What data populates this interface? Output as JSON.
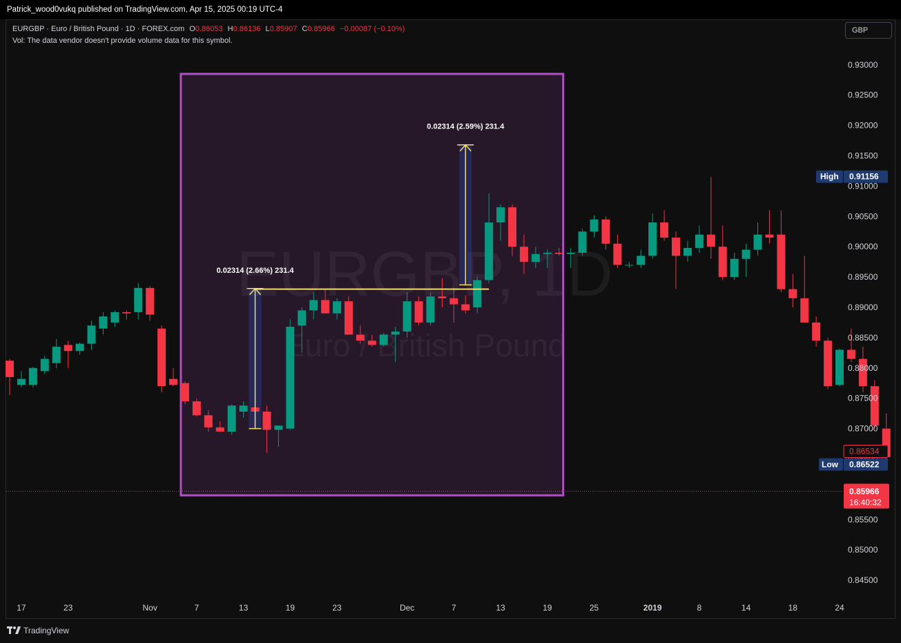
{
  "publisher": "Patrick_wood0vukq published on TradingView.com, Apr 15, 2025 00:19 UTC-4",
  "symbol_line": "EURGBP · Euro / British Pound · 1D · FOREX.com",
  "ohlc": {
    "o_label": "O",
    "o": "0.86053",
    "h_label": "H",
    "h": "0.86136",
    "l_label": "L",
    "l": "0.85907",
    "c_label": "C",
    "c": "0.85966",
    "change": "−0.00087 (−0.10%)"
  },
  "volume_note": "Vol: The data vendor doesn't provide volume data for this symbol.",
  "currency_button": "GBP",
  "watermark": {
    "symbol": "EURGBP, 1D",
    "name": "Euro / British Pound"
  },
  "footer": "TradingView",
  "colors": {
    "up": "#089981",
    "down": "#f23645",
    "rect": "#b14fc5",
    "measure": "#f5dd6b",
    "label_bg": "#1e3a6e",
    "price_bg": "#f23645"
  },
  "chart_data": {
    "type": "candlestick",
    "ylim": [
      0.8425,
      0.9375
    ],
    "y_ticks": [
      "0.84500",
      "0.85000",
      "0.85500",
      "0.86000",
      "0.86500",
      "0.87000",
      "0.87500",
      "0.88000",
      "0.88500",
      "0.89000",
      "0.89500",
      "0.90000",
      "0.90500",
      "0.91000",
      "0.91500",
      "0.92000",
      "0.92500",
      "0.93000",
      "0.93500"
    ],
    "x_ticks": [
      {
        "label": "17",
        "i": 1
      },
      {
        "label": "23",
        "i": 5
      },
      {
        "label": "Nov",
        "i": 12
      },
      {
        "label": "7",
        "i": 16
      },
      {
        "label": "13",
        "i": 20
      },
      {
        "label": "19",
        "i": 24
      },
      {
        "label": "23",
        "i": 28
      },
      {
        "label": "Dec",
        "i": 34
      },
      {
        "label": "7",
        "i": 38
      },
      {
        "label": "13",
        "i": 42
      },
      {
        "label": "19",
        "i": 46
      },
      {
        "label": "25",
        "i": 50
      },
      {
        "label": "2019",
        "i": 55,
        "bold": true
      },
      {
        "label": "8",
        "i": 59
      },
      {
        "label": "14",
        "i": 63
      },
      {
        "label": "18",
        "i": 67
      },
      {
        "label": "24",
        "i": 71
      }
    ],
    "candles": [
      [
        0.8812,
        0.8815,
        0.8755,
        0.8785
      ],
      [
        0.8772,
        0.8795,
        0.8768,
        0.8782
      ],
      [
        0.8772,
        0.8802,
        0.8768,
        0.88
      ],
      [
        0.8795,
        0.882,
        0.879,
        0.8815
      ],
      [
        0.8808,
        0.8848,
        0.88,
        0.8835
      ],
      [
        0.8838,
        0.8845,
        0.88,
        0.8828
      ],
      [
        0.8828,
        0.8842,
        0.8822,
        0.884
      ],
      [
        0.884,
        0.8878,
        0.883,
        0.887
      ],
      [
        0.8865,
        0.8892,
        0.8855,
        0.8885
      ],
      [
        0.8875,
        0.8895,
        0.8868,
        0.8892
      ],
      [
        0.8892,
        0.8895,
        0.888,
        0.889
      ],
      [
        0.8892,
        0.894,
        0.888,
        0.8932
      ],
      [
        0.8932,
        0.8935,
        0.8878,
        0.8888
      ],
      [
        0.8865,
        0.887,
        0.876,
        0.877
      ],
      [
        0.8782,
        0.88,
        0.877,
        0.8772
      ],
      [
        0.8775,
        0.8778,
        0.874,
        0.8745
      ],
      [
        0.8745,
        0.875,
        0.872,
        0.8722
      ],
      [
        0.8722,
        0.873,
        0.8695,
        0.8702
      ],
      [
        0.8702,
        0.8712,
        0.8695,
        0.8695
      ],
      [
        0.8695,
        0.874,
        0.869,
        0.8738
      ],
      [
        0.8728,
        0.8745,
        0.8718,
        0.8738
      ],
      [
        0.8735,
        0.8755,
        0.8705,
        0.8728
      ],
      [
        0.8728,
        0.8738,
        0.866,
        0.8698
      ],
      [
        0.8698,
        0.8705,
        0.867,
        0.8705
      ],
      [
        0.87,
        0.888,
        0.8698,
        0.8868
      ],
      [
        0.887,
        0.89,
        0.8825,
        0.8895
      ],
      [
        0.8895,
        0.8925,
        0.888,
        0.8912
      ],
      [
        0.8912,
        0.893,
        0.889,
        0.889
      ],
      [
        0.889,
        0.8915,
        0.888,
        0.891
      ],
      [
        0.891,
        0.8918,
        0.886,
        0.8855
      ],
      [
        0.8855,
        0.887,
        0.884,
        0.8845
      ],
      [
        0.8845,
        0.8855,
        0.8835,
        0.8838
      ],
      [
        0.8838,
        0.8858,
        0.8835,
        0.8855
      ],
      [
        0.8855,
        0.8868,
        0.881,
        0.886
      ],
      [
        0.886,
        0.8925,
        0.885,
        0.891
      ],
      [
        0.891,
        0.8918,
        0.887,
        0.8875
      ],
      [
        0.8875,
        0.8925,
        0.887,
        0.8918
      ],
      [
        0.8918,
        0.8948,
        0.89,
        0.8915
      ],
      [
        0.8915,
        0.8932,
        0.8875,
        0.8905
      ],
      [
        0.8905,
        0.892,
        0.889,
        0.8895
      ],
      [
        0.89,
        0.895,
        0.889,
        0.8945
      ],
      [
        0.8945,
        0.9088,
        0.894,
        0.904
      ],
      [
        0.904,
        0.907,
        0.901,
        0.9065
      ],
      [
        0.9065,
        0.907,
        0.8985,
        0.9
      ],
      [
        0.9,
        0.902,
        0.8955,
        0.8975
      ],
      [
        0.8975,
        0.9,
        0.8965,
        0.8988
      ],
      [
        0.8988,
        0.8995,
        0.8965,
        0.899
      ],
      [
        0.899,
        0.8998,
        0.8985,
        0.8988
      ],
      [
        0.8988,
        0.8998,
        0.8965,
        0.899
      ],
      [
        0.899,
        0.903,
        0.8985,
        0.9025
      ],
      [
        0.9025,
        0.9052,
        0.9015,
        0.9045
      ],
      [
        0.9045,
        0.905,
        0.8995,
        0.9005
      ],
      [
        0.9005,
        0.902,
        0.8965,
        0.897
      ],
      [
        0.897,
        0.8975,
        0.8965,
        0.897
      ],
      [
        0.897,
        0.8995,
        0.8965,
        0.8985
      ],
      [
        0.8985,
        0.9055,
        0.898,
        0.904
      ],
      [
        0.904,
        0.906,
        0.901,
        0.9015
      ],
      [
        0.9015,
        0.9025,
        0.893,
        0.8985
      ],
      [
        0.8985,
        0.901,
        0.8975,
        0.8998
      ],
      [
        0.8998,
        0.9035,
        0.899,
        0.902
      ],
      [
        0.902,
        0.9115,
        0.898,
        0.9
      ],
      [
        0.9,
        0.9035,
        0.8945,
        0.895
      ],
      [
        0.895,
        0.899,
        0.8945,
        0.898
      ],
      [
        0.898,
        0.9005,
        0.895,
        0.8995
      ],
      [
        0.8995,
        0.904,
        0.8985,
        0.902
      ],
      [
        0.902,
        0.906,
        0.9005,
        0.9015
      ],
      [
        0.902,
        0.906,
        0.8925,
        0.893
      ],
      [
        0.893,
        0.8955,
        0.89,
        0.8915
      ],
      [
        0.8915,
        0.8985,
        0.8875,
        0.8875
      ],
      [
        0.8875,
        0.8885,
        0.8835,
        0.8845
      ],
      [
        0.8845,
        0.885,
        0.8765,
        0.877
      ],
      [
        0.8772,
        0.8832,
        0.877,
        0.883
      ],
      [
        0.883,
        0.8865,
        0.881,
        0.8815
      ],
      [
        0.8815,
        0.8835,
        0.876,
        0.877
      ],
      [
        0.877,
        0.878,
        0.87,
        0.8705
      ],
      [
        0.87,
        0.8725,
        0.865,
        0.8653
      ]
    ],
    "rectangle": {
      "i_start": 15,
      "i_end": 47,
      "price_top": 0.9285,
      "price_bottom": 0.859
    },
    "horizontal_line": {
      "price": 0.893,
      "i_start": 21,
      "i_end": 41
    },
    "measures": [
      {
        "label": "0.02314 (2.66%) 231.4",
        "i": 21,
        "from": 0.87,
        "to": 0.8931
      },
      {
        "label": "0.02314 (2.59%) 231.4",
        "i": 39,
        "from": 0.8937,
        "to": 0.9168
      }
    ],
    "price_labels": {
      "high": {
        "tag": "High",
        "value": "0.91156",
        "price": 0.91156
      },
      "low": {
        "tag": "Low",
        "value": "0.86522",
        "price": 0.86522
      },
      "last_close": {
        "value": "0.86534",
        "price": 0.86534
      },
      "current": {
        "value": "0.85966",
        "time": "16:40:32",
        "price": 0.85966
      }
    }
  }
}
